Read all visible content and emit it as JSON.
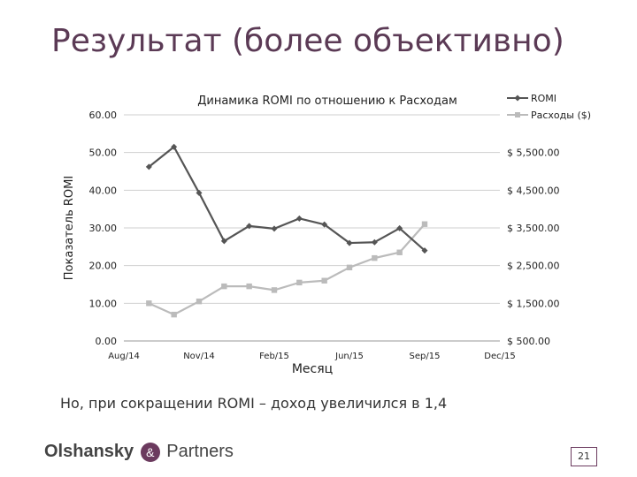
{
  "slide": {
    "title": "Результат (более объективно)",
    "note": "Но, при сокращении ROMI – доход увеличился в 1,4",
    "logo_part1": "Olshansky",
    "logo_amp": "&",
    "logo_part2": "Partners",
    "page_number": "21"
  },
  "chart_data": {
    "type": "line",
    "title": "Динамика ROMI по отношению к Расходам",
    "xlabel": "Месяц",
    "ylabel": "Показатель ROMI",
    "x_tick_labels": [
      "Aug/14",
      "Nov/14",
      "Feb/15",
      "Jun/15",
      "Sep/15",
      "Dec/15"
    ],
    "y_left_ticks": [
      "0.00",
      "10.00",
      "20.00",
      "30.00",
      "40.00",
      "50.00",
      "60.00"
    ],
    "y_right_ticks": [
      "$ 500.00",
      "$ 1,500.00",
      "$ 2,500.00",
      "$ 3,500.00",
      "$ 4,500.00",
      "$ 5,500.00"
    ],
    "ylim_left": [
      0,
      60
    ],
    "ylim_right": [
      500,
      6500
    ],
    "x_months": [
      "Sep/14",
      "Oct/14",
      "Nov/14",
      "Dec/14",
      "Jan/15",
      "Feb/15",
      "Mar/15",
      "Apr/15",
      "May/15",
      "Jun/15",
      "Jul/15",
      "Aug/15"
    ],
    "series": [
      {
        "name": "ROMI",
        "axis": "left",
        "color": "#555555",
        "marker": "diamond",
        "values": [
          46.2,
          51.5,
          39.3,
          26.5,
          30.5,
          29.8,
          32.5,
          30.9,
          26.0,
          26.2,
          29.9,
          24.0
        ]
      },
      {
        "name": "Расходы ($)",
        "axis": "right",
        "color": "#bbbbbb",
        "marker": "square",
        "values": [
          1500,
          1200,
          1550,
          1950,
          1950,
          1850,
          2050,
          2100,
          2450,
          2700,
          2850,
          3600
        ]
      }
    ],
    "legend_position": "top-right",
    "grid": "horizontal"
  }
}
